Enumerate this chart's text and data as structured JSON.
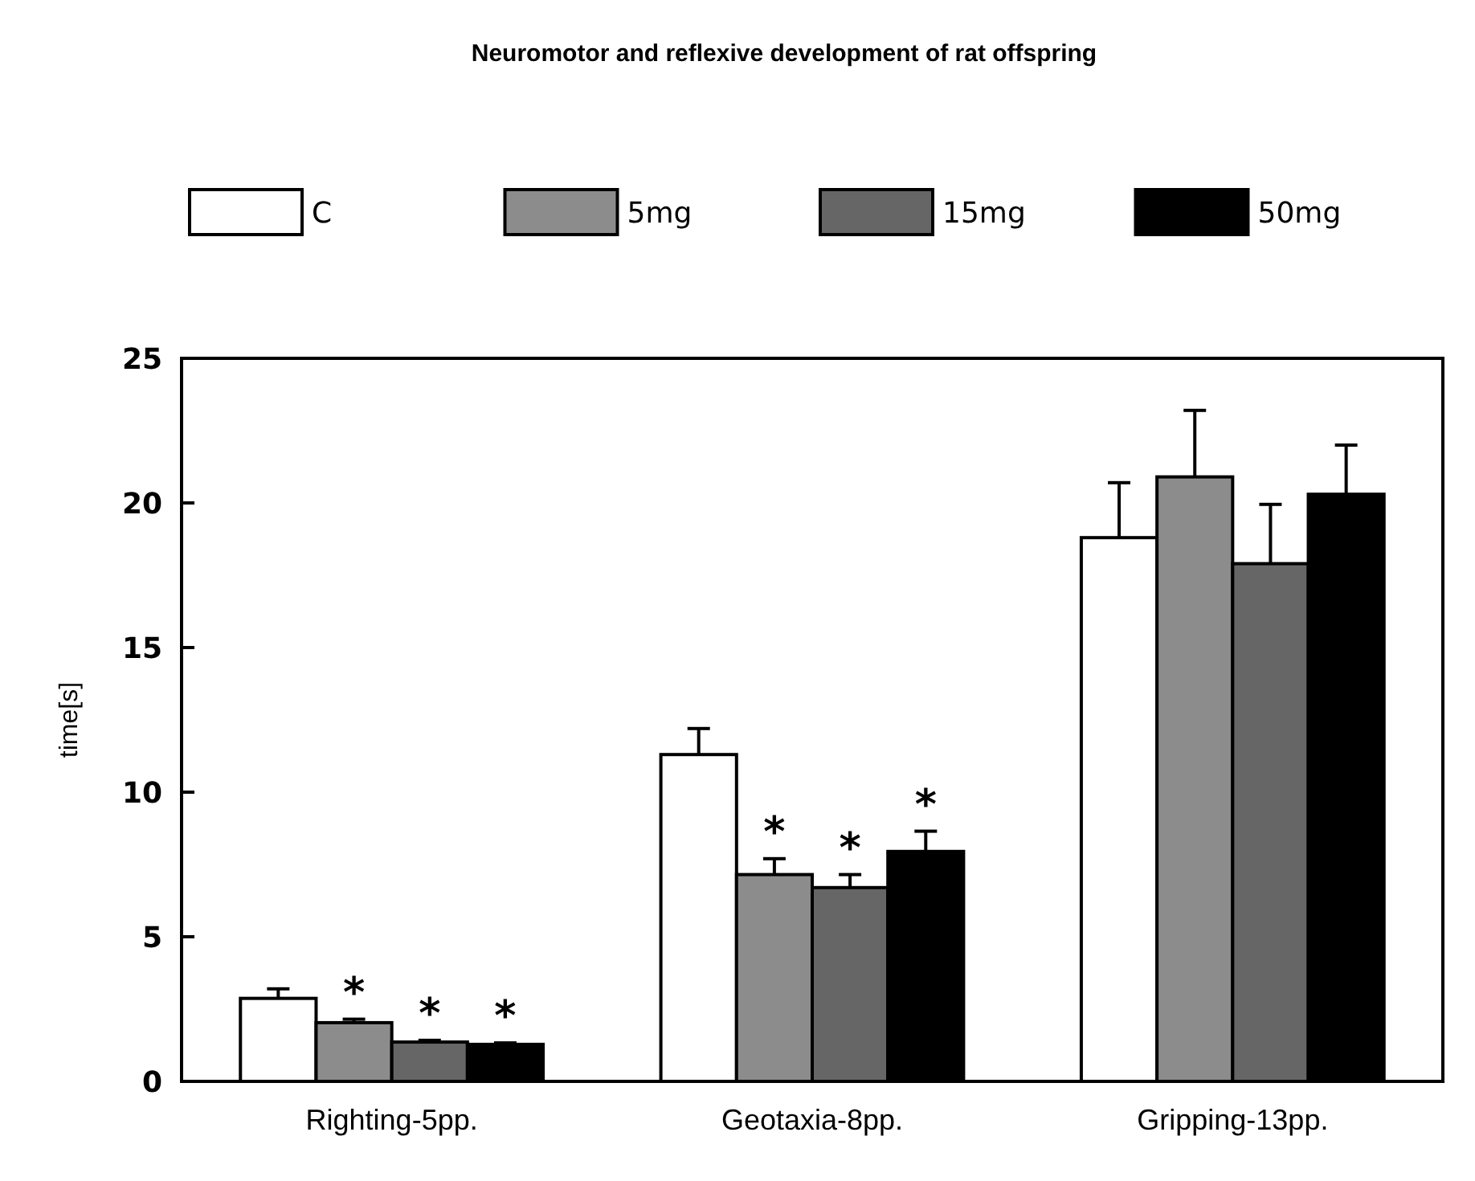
{
  "chart_data": {
    "type": "bar",
    "title": "Neuromotor and reflexive development of rat offspring",
    "ylabel": "time[s]",
    "categories": [
      "Righting-5pp.",
      "Geotaxia-8pp.",
      "Gripping-13pp."
    ],
    "ylim": [
      0,
      25
    ],
    "yticks": [
      0,
      5,
      10,
      15,
      20,
      25
    ],
    "legend": "top",
    "grid": false,
    "series": [
      {
        "name": "C",
        "color": "#ffffff",
        "values": [
          2.87,
          11.3,
          18.8
        ],
        "errors": [
          [
            2.87,
            3.2
          ],
          [
            11.3,
            12.2
          ],
          [
            18.8,
            20.7
          ]
        ]
      },
      {
        "name": "5mg",
        "color": "#8c8c8c",
        "values": [
          2.03,
          7.15,
          20.9
        ],
        "errors": [
          [
            2.03,
            2.15
          ],
          [
            7.15,
            7.7
          ],
          [
            20.9,
            23.2
          ]
        ],
        "value_labels": [
          "*",
          "*",
          null
        ]
      },
      {
        "name": "15mg",
        "color": "#666666",
        "values": [
          1.36,
          6.7,
          17.9
        ],
        "errors": [
          [
            1.36,
            1.42
          ],
          [
            6.7,
            7.15
          ],
          [
            17.9,
            19.95
          ]
        ],
        "value_labels": [
          "*",
          "*",
          null
        ]
      },
      {
        "name": "50mg",
        "color": "#000000",
        "values": [
          1.28,
          7.95,
          20.3
        ],
        "errors": [
          [
            1.28,
            1.33
          ],
          [
            7.95,
            8.65
          ],
          [
            20.3,
            22.0
          ]
        ],
        "value_labels": [
          "*",
          "*",
          null
        ]
      }
    ]
  }
}
